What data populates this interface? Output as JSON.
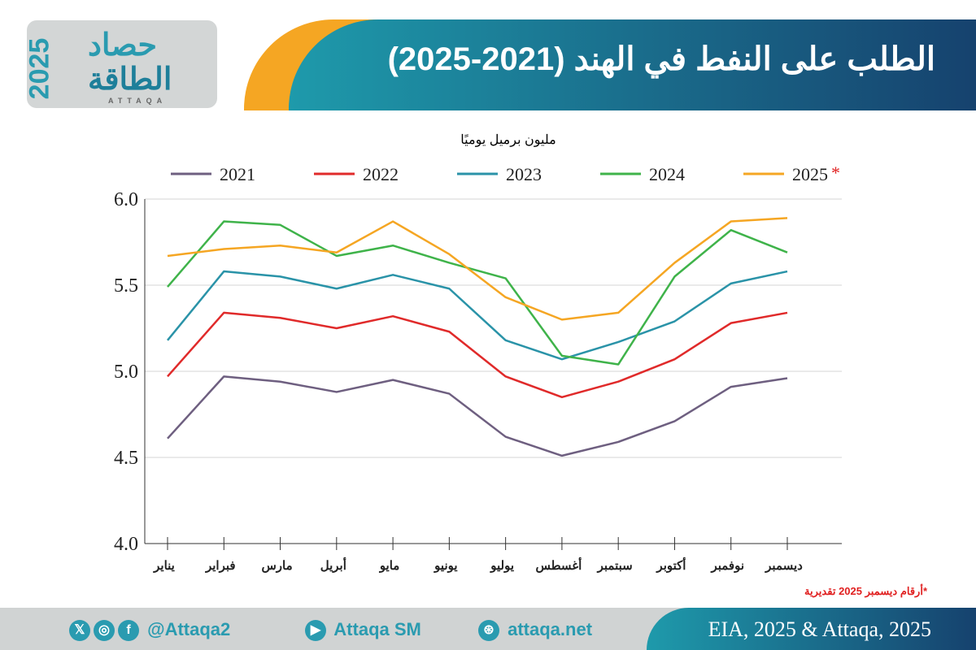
{
  "header": {
    "title": "الطلب على النفط في الهند (2021-2025)"
  },
  "logo": {
    "line1": "حصاد",
    "line2": "الطاقة",
    "year": "2025",
    "latin": "ATTAQA"
  },
  "chart_data": {
    "type": "line",
    "ylabel": "مليون برميل يوميًا",
    "ylim": [
      4.0,
      6.0
    ],
    "yticks": [
      "4.0",
      "4.5",
      "5.0",
      "5.5",
      "6.0"
    ],
    "grid": true,
    "legend_position": "top",
    "categories": [
      "يناير",
      "فبراير",
      "مارس",
      "أبريل",
      "مايو",
      "يونيو",
      "يوليو",
      "أغسطس",
      "سبتمبر",
      "أكتوبر",
      "نوفمبر",
      "ديسمبر"
    ],
    "series": [
      {
        "name": "2021",
        "color": "#6e5f80",
        "values": [
          4.61,
          4.97,
          4.94,
          4.88,
          4.95,
          4.87,
          4.62,
          4.51,
          4.59,
          4.71,
          4.91,
          4.96
        ]
      },
      {
        "name": "2022",
        "color": "#e02a2a",
        "values": [
          4.97,
          5.34,
          5.31,
          5.25,
          5.32,
          5.23,
          4.97,
          4.85,
          4.94,
          5.07,
          5.28,
          5.34
        ]
      },
      {
        "name": "2023",
        "color": "#2a93a8",
        "values": [
          5.18,
          5.58,
          5.55,
          5.48,
          5.56,
          5.48,
          5.18,
          5.07,
          5.17,
          5.29,
          5.51,
          5.58
        ]
      },
      {
        "name": "2024",
        "color": "#3fb34a",
        "values": [
          5.49,
          5.87,
          5.85,
          5.67,
          5.73,
          5.63,
          5.54,
          5.09,
          5.04,
          5.55,
          5.82,
          5.69
        ]
      },
      {
        "name": "2025",
        "color": "#f5a623",
        "values": [
          5.67,
          5.71,
          5.73,
          5.69,
          5.87,
          5.68,
          5.43,
          5.3,
          5.34,
          5.63,
          5.87,
          5.89
        ]
      }
    ],
    "legend_star": "*",
    "note": "*أرقام ديسمبر 2025 تقديرية"
  },
  "footer": {
    "handle": "@Attaqa2",
    "youtube": "Attaqa SM",
    "site": "attaqa.net",
    "source": "EIA, 2025 & Attaqa, 2025"
  }
}
